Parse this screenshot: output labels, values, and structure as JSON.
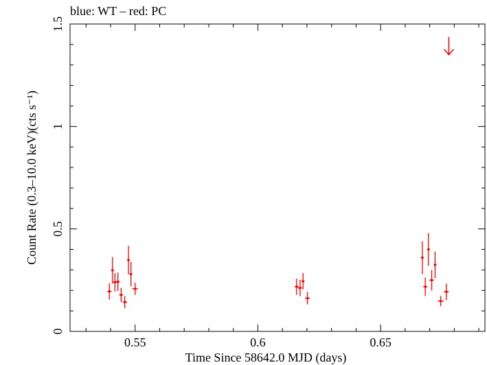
{
  "chart_data": {
    "type": "scatter",
    "title": "blue: WT – red: PC",
    "xlabel": "Time Since 58642.0 MJD (days)",
    "ylabel": "Count Rate (0.3–10.0 keV)(cts s⁻¹)",
    "xlim": [
      0.5235,
      0.6925
    ],
    "ylim": [
      0,
      1.5
    ],
    "x_ticks": [
      {
        "value": 0.55,
        "label": "0.55"
      },
      {
        "value": 0.6,
        "label": "0.6"
      },
      {
        "value": 0.65,
        "label": "0.65"
      }
    ],
    "y_ticks": [
      {
        "value": 0,
        "label": "0"
      },
      {
        "value": 0.5,
        "label": "0.5"
      },
      {
        "value": 1,
        "label": "1"
      },
      {
        "value": 1.5,
        "label": "1.5"
      }
    ],
    "grid": false,
    "series": [
      {
        "name": "PC",
        "color": "#ff0000",
        "points": [
          {
            "x": 0.5395,
            "y": 0.195,
            "xerr": 0.0009,
            "yerr": 0.04
          },
          {
            "x": 0.5408,
            "y": 0.298,
            "xerr": 0.0005,
            "yerr": 0.065
          },
          {
            "x": 0.5418,
            "y": 0.24,
            "xerr": 0.0008,
            "yerr": 0.045
          },
          {
            "x": 0.543,
            "y": 0.242,
            "xerr": 0.0008,
            "yerr": 0.045
          },
          {
            "x": 0.5443,
            "y": 0.178,
            "xerr": 0.0008,
            "yerr": 0.035
          },
          {
            "x": 0.5458,
            "y": 0.143,
            "xerr": 0.0009,
            "yerr": 0.03
          },
          {
            "x": 0.5473,
            "y": 0.348,
            "xerr": 0.0005,
            "yerr": 0.07
          },
          {
            "x": 0.5483,
            "y": 0.28,
            "xerr": 0.0005,
            "yerr": 0.06
          },
          {
            "x": 0.55,
            "y": 0.208,
            "xerr": 0.0012,
            "yerr": 0.03
          },
          {
            "x": 0.6158,
            "y": 0.218,
            "xerr": 0.0008,
            "yerr": 0.04
          },
          {
            "x": 0.6172,
            "y": 0.212,
            "xerr": 0.0008,
            "yerr": 0.04
          },
          {
            "x": 0.6184,
            "y": 0.245,
            "xerr": 0.0006,
            "yerr": 0.04
          },
          {
            "x": 0.6202,
            "y": 0.162,
            "xerr": 0.001,
            "yerr": 0.03
          },
          {
            "x": 0.667,
            "y": 0.36,
            "xerr": 0.0006,
            "yerr": 0.08
          },
          {
            "x": 0.6682,
            "y": 0.218,
            "xerr": 0.0009,
            "yerr": 0.045
          },
          {
            "x": 0.6695,
            "y": 0.4,
            "xerr": 0.0006,
            "yerr": 0.08
          },
          {
            "x": 0.6708,
            "y": 0.25,
            "xerr": 0.0009,
            "yerr": 0.05
          },
          {
            "x": 0.6722,
            "y": 0.325,
            "xerr": 0.0006,
            "yerr": 0.065
          },
          {
            "x": 0.6745,
            "y": 0.148,
            "xerr": 0.0012,
            "yerr": 0.025
          },
          {
            "x": 0.6768,
            "y": 0.193,
            "xerr": 0.001,
            "yerr": 0.04
          }
        ],
        "upper_limits": [
          {
            "x": 0.6778,
            "y": 1.35
          }
        ]
      }
    ]
  }
}
